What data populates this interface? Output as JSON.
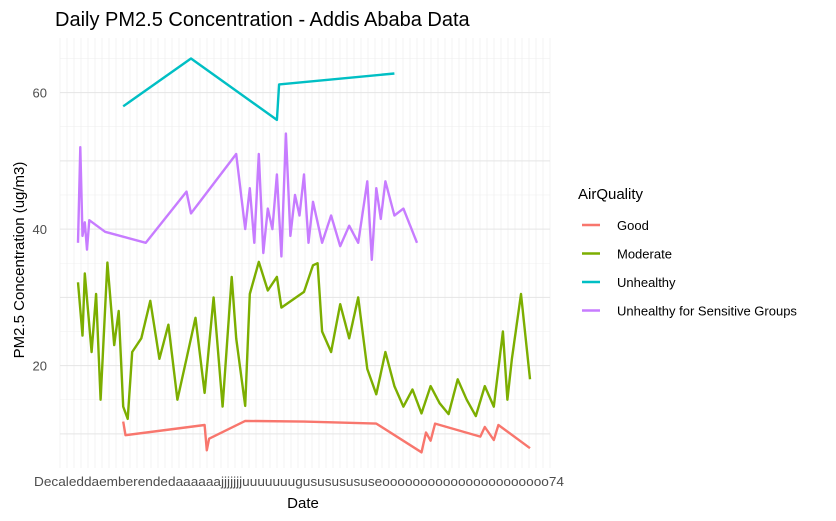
{
  "chart_data": {
    "type": "line",
    "title": "Daily PM2.5 Concentration - Addis Ababa Data",
    "xlabel": "Date",
    "ylabel": "PM2.5 Concentration (ug/m3)",
    "ylim": [
      5,
      68
    ],
    "yticks": [
      20,
      40,
      60
    ],
    "x_tick_labels_note": "overlapping date tick labels ending in ...74",
    "x_tick_text": "Decaleddaemberendedaaaaaajjjjjjjuuuuuuugusususususeoooooooooooooooooooooo74",
    "grid": true,
    "legend": {
      "title": "AirQuality",
      "position": "right"
    },
    "series": [
      {
        "name": "Good",
        "color": "#F8766D",
        "points": [
          [
            0.1,
            11.8
          ],
          [
            0.105,
            9.8
          ],
          [
            0.28,
            11.3
          ],
          [
            0.285,
            7.6
          ],
          [
            0.29,
            9.3
          ],
          [
            0.37,
            11.9
          ],
          [
            0.5,
            11.8
          ],
          [
            0.66,
            11.5
          ],
          [
            0.76,
            7.3
          ],
          [
            0.77,
            10.2
          ],
          [
            0.78,
            9.0
          ],
          [
            0.79,
            11.5
          ],
          [
            0.89,
            9.6
          ],
          [
            0.9,
            11.0
          ],
          [
            0.92,
            9.1
          ],
          [
            0.93,
            11.3
          ],
          [
            1.0,
            7.9
          ]
        ]
      },
      {
        "name": "Moderate",
        "color": "#7CAE00",
        "points": [
          [
            0.0,
            32.2
          ],
          [
            0.01,
            24.4
          ],
          [
            0.015,
            33.5
          ],
          [
            0.03,
            22.0
          ],
          [
            0.04,
            30.5
          ],
          [
            0.05,
            15.0
          ],
          [
            0.065,
            35.1
          ],
          [
            0.08,
            23.0
          ],
          [
            0.09,
            28.0
          ],
          [
            0.1,
            14.0
          ],
          [
            0.11,
            12.2
          ],
          [
            0.12,
            22.0
          ],
          [
            0.14,
            24.0
          ],
          [
            0.16,
            29.5
          ],
          [
            0.18,
            21.0
          ],
          [
            0.2,
            26.0
          ],
          [
            0.22,
            15.0
          ],
          [
            0.24,
            21.0
          ],
          [
            0.26,
            27.0
          ],
          [
            0.28,
            16.0
          ],
          [
            0.3,
            30.0
          ],
          [
            0.32,
            14.0
          ],
          [
            0.34,
            33.0
          ],
          [
            0.35,
            24.0
          ],
          [
            0.37,
            14.1
          ],
          [
            0.38,
            30.5
          ],
          [
            0.4,
            35.2
          ],
          [
            0.42,
            31.0
          ],
          [
            0.44,
            33.0
          ],
          [
            0.45,
            28.5
          ],
          [
            0.5,
            30.8
          ],
          [
            0.52,
            34.7
          ],
          [
            0.53,
            35.0
          ],
          [
            0.54,
            25.0
          ],
          [
            0.56,
            22.0
          ],
          [
            0.58,
            29.0
          ],
          [
            0.6,
            24.0
          ],
          [
            0.62,
            30.0
          ],
          [
            0.64,
            19.5
          ],
          [
            0.66,
            15.8
          ],
          [
            0.68,
            22.0
          ],
          [
            0.7,
            17.0
          ],
          [
            0.72,
            14.0
          ],
          [
            0.74,
            16.5
          ],
          [
            0.76,
            13.0
          ],
          [
            0.78,
            17.0
          ],
          [
            0.8,
            14.5
          ],
          [
            0.82,
            12.9
          ],
          [
            0.84,
            18.0
          ],
          [
            0.86,
            15.0
          ],
          [
            0.88,
            12.6
          ],
          [
            0.9,
            17.0
          ],
          [
            0.92,
            14.0
          ],
          [
            0.94,
            25.0
          ],
          [
            0.95,
            15.0
          ],
          [
            0.96,
            21.0
          ],
          [
            0.98,
            30.5
          ],
          [
            1.0,
            18.0
          ]
        ]
      },
      {
        "name": "Unhealthy",
        "color": "#00BFC4",
        "points": [
          [
            0.1,
            58.0
          ],
          [
            0.25,
            65.0
          ],
          [
            0.44,
            56.0
          ],
          [
            0.445,
            61.2
          ],
          [
            0.7,
            62.8
          ]
        ]
      },
      {
        "name": "Unhealthy for Sensitive Groups",
        "color": "#C77CFF",
        "points": [
          [
            0.0,
            38.0
          ],
          [
            0.005,
            52.0
          ],
          [
            0.01,
            39.0
          ],
          [
            0.015,
            41.0
          ],
          [
            0.02,
            37.0
          ],
          [
            0.025,
            41.3
          ],
          [
            0.06,
            39.6
          ],
          [
            0.15,
            38.0
          ],
          [
            0.24,
            45.5
          ],
          [
            0.25,
            42.3
          ],
          [
            0.35,
            51.0
          ],
          [
            0.37,
            40.0
          ],
          [
            0.38,
            46.0
          ],
          [
            0.39,
            38.0
          ],
          [
            0.4,
            51.0
          ],
          [
            0.41,
            36.5
          ],
          [
            0.42,
            43.0
          ],
          [
            0.43,
            40.0
          ],
          [
            0.44,
            48.0
          ],
          [
            0.45,
            36.0
          ],
          [
            0.46,
            54.0
          ],
          [
            0.47,
            39.0
          ],
          [
            0.48,
            45.0
          ],
          [
            0.49,
            42.0
          ],
          [
            0.5,
            48.0
          ],
          [
            0.51,
            38.0
          ],
          [
            0.52,
            44.0
          ],
          [
            0.54,
            38.0
          ],
          [
            0.56,
            42.0
          ],
          [
            0.58,
            37.5
          ],
          [
            0.6,
            40.5
          ],
          [
            0.62,
            38.0
          ],
          [
            0.64,
            47.0
          ],
          [
            0.65,
            35.5
          ],
          [
            0.66,
            46.0
          ],
          [
            0.67,
            41.5
          ],
          [
            0.68,
            47.0
          ],
          [
            0.7,
            42.0
          ],
          [
            0.72,
            43.0
          ],
          [
            0.75,
            38.0
          ]
        ]
      }
    ]
  }
}
